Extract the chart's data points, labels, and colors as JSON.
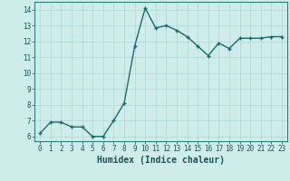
{
  "x": [
    0,
    1,
    2,
    3,
    4,
    5,
    6,
    7,
    8,
    9,
    10,
    11,
    12,
    13,
    14,
    15,
    16,
    17,
    18,
    19,
    20,
    21,
    22,
    23
  ],
  "y": [
    6.2,
    6.9,
    6.9,
    6.6,
    6.6,
    6.0,
    6.0,
    7.0,
    8.1,
    11.7,
    14.1,
    12.85,
    13.0,
    12.7,
    12.3,
    11.7,
    11.1,
    11.9,
    11.55,
    12.2,
    12.2,
    12.2,
    12.3,
    12.3
  ],
  "line_color": "#1a6b6b",
  "marker": "+",
  "markersize": 3.5,
  "linewidth": 1.0,
  "markeredgewidth": 1.0,
  "xlabel": "Humidex (Indice chaleur)",
  "xlim": [
    -0.5,
    23.5
  ],
  "ylim": [
    5.7,
    14.5
  ],
  "yticks": [
    6,
    7,
    8,
    9,
    10,
    11,
    12,
    13,
    14
  ],
  "xticks": [
    0,
    1,
    2,
    3,
    4,
    5,
    6,
    7,
    8,
    9,
    10,
    11,
    12,
    13,
    14,
    15,
    16,
    17,
    18,
    19,
    20,
    21,
    22,
    23
  ],
  "bg_color": "#ceecea",
  "grid_color": "#aed6d2",
  "tick_label_color": "#1a5555",
  "xlabel_color": "#1a5555",
  "xlabel_fontsize": 7,
  "tick_fontsize": 5.5,
  "spine_color": "#2a8080"
}
